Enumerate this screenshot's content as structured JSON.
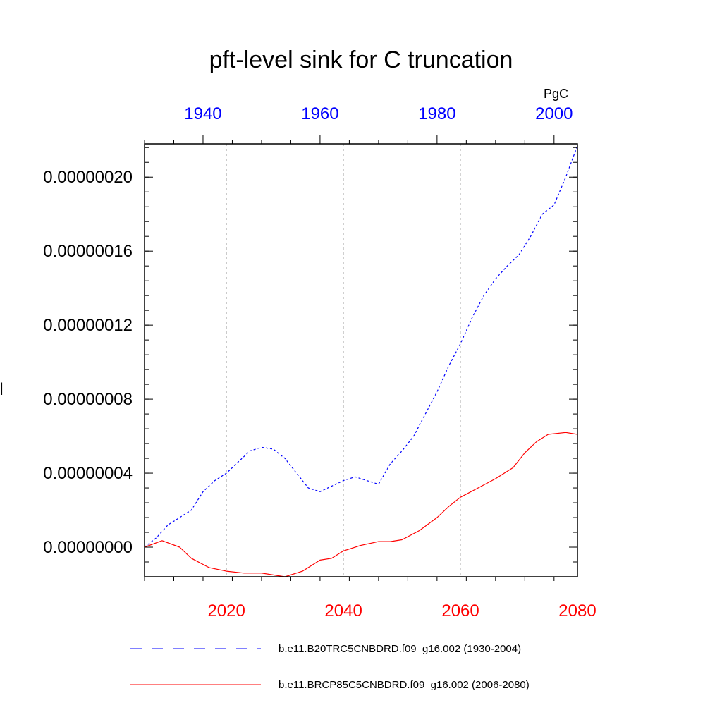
{
  "chart_data": {
    "type": "line",
    "title": "pft-level sink for C truncation",
    "units_label": "PgC",
    "y_axis_label": "|",
    "ylim": [
      -1.6e-08,
      2.18e-07
    ],
    "y_ticks": [
      0,
      4e-08,
      8e-08,
      1.2e-07,
      1.6e-07,
      2e-07
    ],
    "y_tick_labels": [
      "0.00000000",
      "0.00000004",
      "0.00000008",
      "0.00000012",
      "0.00000016",
      "0.00000020"
    ],
    "grid": "vertical dashed gray lines at major x ticks",
    "top_axis": {
      "range": [
        1930,
        2004
      ],
      "ticks": [
        1940,
        1960,
        1980,
        2000
      ],
      "tick_labels": [
        "1940",
        "1960",
        "1980",
        "2000"
      ],
      "color": "#0000ff"
    },
    "bottom_axis": {
      "range": [
        2006,
        2080
      ],
      "ticks": [
        2020,
        2040,
        2060,
        2080
      ],
      "tick_labels": [
        "2020",
        "2040",
        "2060",
        "2080"
      ],
      "color": "#ff0000"
    },
    "series": [
      {
        "name": "b.e11.B20TRC5CNBDRD.f09_g16.002 (1930-2004)",
        "axis": "top",
        "color": "#0000ff",
        "dash": "dashed",
        "points": [
          [
            1930,
            0.0
          ],
          [
            1932,
            5e-09
          ],
          [
            1934,
            1.2e-08
          ],
          [
            1936,
            1.6e-08
          ],
          [
            1938,
            2e-08
          ],
          [
            1940,
            3e-08
          ],
          [
            1942,
            3.6e-08
          ],
          [
            1944,
            4e-08
          ],
          [
            1946,
            4.6e-08
          ],
          [
            1948,
            5.2e-08
          ],
          [
            1950,
            5.4e-08
          ],
          [
            1952,
            5.3e-08
          ],
          [
            1954,
            4.8e-08
          ],
          [
            1956,
            4e-08
          ],
          [
            1958,
            3.2e-08
          ],
          [
            1960,
            3e-08
          ],
          [
            1962,
            3.3e-08
          ],
          [
            1964,
            3.6e-08
          ],
          [
            1966,
            3.8e-08
          ],
          [
            1968,
            3.6e-08
          ],
          [
            1970,
            3.4e-08
          ],
          [
            1972,
            4.5e-08
          ],
          [
            1974,
            5.2e-08
          ],
          [
            1976,
            6e-08
          ],
          [
            1978,
            7.2e-08
          ],
          [
            1980,
            8.4e-08
          ],
          [
            1982,
            9.8e-08
          ],
          [
            1984,
            1.1e-07
          ],
          [
            1986,
            1.24e-07
          ],
          [
            1988,
            1.36e-07
          ],
          [
            1990,
            1.45e-07
          ],
          [
            1992,
            1.52e-07
          ],
          [
            1994,
            1.58e-07
          ],
          [
            1996,
            1.68e-07
          ],
          [
            1998,
            1.8e-07
          ],
          [
            2000,
            1.85e-07
          ],
          [
            2002,
            2e-07
          ],
          [
            2004,
            2.17e-07
          ]
        ]
      },
      {
        "name": "b.e11.BRCP85C5CNBDRD.f09_g16.002 (2006-2080)",
        "axis": "bottom",
        "color": "#ff0000",
        "dash": "solid",
        "points": [
          [
            2006,
            0.0
          ],
          [
            2009,
            3.5e-09
          ],
          [
            2012,
            0.0
          ],
          [
            2014,
            -6e-09
          ],
          [
            2017,
            -1.1e-08
          ],
          [
            2020,
            -1.3e-08
          ],
          [
            2023,
            -1.4e-08
          ],
          [
            2026,
            -1.4e-08
          ],
          [
            2028,
            -1.5e-08
          ],
          [
            2030,
            -1.6e-08
          ],
          [
            2033,
            -1.3e-08
          ],
          [
            2036,
            -7e-09
          ],
          [
            2038,
            -6e-09
          ],
          [
            2040,
            -2e-09
          ],
          [
            2043,
            1e-09
          ],
          [
            2046,
            3e-09
          ],
          [
            2048,
            3e-09
          ],
          [
            2050,
            4e-09
          ],
          [
            2053,
            9e-09
          ],
          [
            2056,
            1.6e-08
          ],
          [
            2058,
            2.2e-08
          ],
          [
            2060,
            2.7e-08
          ],
          [
            2063,
            3.2e-08
          ],
          [
            2066,
            3.7e-08
          ],
          [
            2069,
            4.3e-08
          ],
          [
            2071,
            5.1e-08
          ],
          [
            2073,
            5.7e-08
          ],
          [
            2075,
            6.1e-08
          ],
          [
            2078,
            6.2e-08
          ],
          [
            2080,
            6.1e-08
          ]
        ]
      }
    ],
    "legend_placement": "bottom"
  }
}
